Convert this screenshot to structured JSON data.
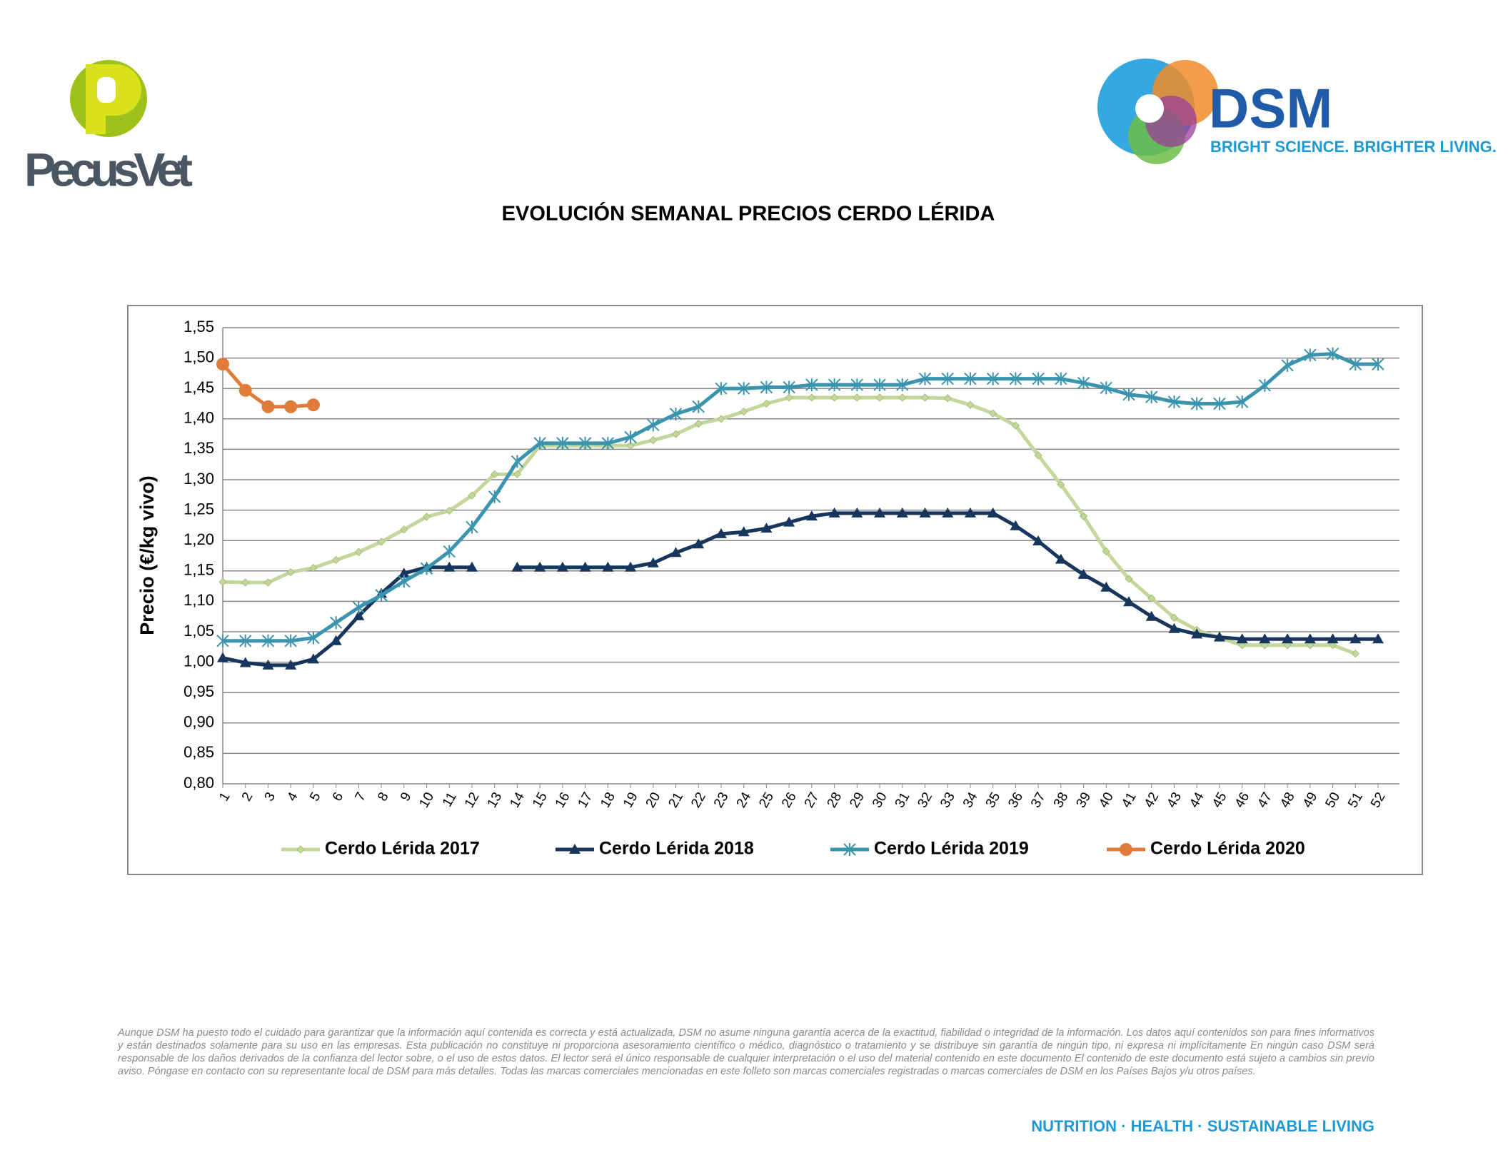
{
  "header": {
    "left_logo": "PecusVet",
    "right_logo": "DSM",
    "tagline": "BRIGHT SCIENCE. BRIGHTER LIVING."
  },
  "chart_data": {
    "type": "line",
    "title": "EVOLUCIÓN SEMANAL PRECIOS CERDO LÉRIDA",
    "y_label": "Precio (€/kg vivo)",
    "categories": [
      "1",
      "2",
      "3",
      "4",
      "5",
      "6",
      "7",
      "8",
      "9",
      "10",
      "11",
      "12",
      "13",
      "14",
      "15",
      "16",
      "17",
      "18",
      "19",
      "20",
      "21",
      "22",
      "23",
      "24",
      "25",
      "26",
      "27",
      "28",
      "29",
      "30",
      "31",
      "32",
      "33",
      "34",
      "35",
      "36",
      "37",
      "38",
      "39",
      "40",
      "41",
      "42",
      "43",
      "44",
      "45",
      "46",
      "47",
      "48",
      "49",
      "50",
      "51",
      "52"
    ],
    "ylim": [
      0.8,
      1.55
    ],
    "yticks": [
      {
        "value": 0.8,
        "label": "0,80"
      },
      {
        "value": 0.85,
        "label": "0,85"
      },
      {
        "value": 0.9,
        "label": "0,90"
      },
      {
        "value": 0.95,
        "label": "0,95"
      },
      {
        "value": 1.0,
        "label": "1,00"
      },
      {
        "value": 1.05,
        "label": "1,05"
      },
      {
        "value": 1.1,
        "label": "1,10"
      },
      {
        "value": 1.15,
        "label": "1,15"
      },
      {
        "value": 1.2,
        "label": "1,20"
      },
      {
        "value": 1.25,
        "label": "1,25"
      },
      {
        "value": 1.3,
        "label": "1,30"
      },
      {
        "value": 1.35,
        "label": "1,35"
      },
      {
        "value": 1.4,
        "label": "1,40"
      },
      {
        "value": 1.45,
        "label": "1,45"
      },
      {
        "value": 1.5,
        "label": "1,50"
      },
      {
        "value": 1.55,
        "label": "1,55"
      }
    ],
    "grid": true,
    "legend": "bottom",
    "series": [
      {
        "name": "Cerdo Lérida 2017",
        "color": "#c3d69b",
        "marker": "diamond",
        "values": [
          1.132,
          1.131,
          1.131,
          1.148,
          1.155,
          1.168,
          1.181,
          1.198,
          1.218,
          1.239,
          1.249,
          1.274,
          1.309,
          1.309,
          1.356,
          1.356,
          1.356,
          1.356,
          1.356,
          1.365,
          1.375,
          1.392,
          1.4,
          1.412,
          1.425,
          1.435,
          1.435,
          1.435,
          1.435,
          1.435,
          1.435,
          1.435,
          1.434,
          1.423,
          1.409,
          1.389,
          1.34,
          1.292,
          1.24,
          1.182,
          1.137,
          1.105,
          1.073,
          1.053,
          1.04,
          1.028,
          1.028,
          1.028,
          1.028,
          1.028,
          1.014,
          null
        ]
      },
      {
        "name": "Cerdo Lérida 2018",
        "color": "#17365d",
        "marker": "triangle",
        "values": [
          1.007,
          0.999,
          0.995,
          0.995,
          1.005,
          1.035,
          1.076,
          1.113,
          1.146,
          1.156,
          1.156,
          1.156,
          null,
          1.156,
          1.156,
          1.156,
          1.156,
          1.156,
          1.156,
          1.163,
          1.18,
          1.194,
          1.211,
          1.214,
          1.22,
          1.23,
          1.24,
          1.245,
          1.245,
          1.245,
          1.245,
          1.245,
          1.245,
          1.245,
          1.245,
          1.224,
          1.199,
          1.169,
          1.144,
          1.123,
          1.099,
          1.075,
          1.055,
          1.046,
          1.041,
          1.038,
          1.038,
          1.038,
          1.038,
          1.038,
          1.038,
          1.038
        ]
      },
      {
        "name": "Cerdo Lérida 2019",
        "color": "#3b94ae",
        "marker": "star",
        "values": [
          1.035,
          1.035,
          1.035,
          1.035,
          1.04,
          1.065,
          1.09,
          1.11,
          1.133,
          1.154,
          1.182,
          1.222,
          1.272,
          1.33,
          1.36,
          1.36,
          1.36,
          1.36,
          1.37,
          1.39,
          1.408,
          1.42,
          1.45,
          1.45,
          1.452,
          1.452,
          1.456,
          1.456,
          1.456,
          1.456,
          1.456,
          1.466,
          1.466,
          1.466,
          1.466,
          1.466,
          1.466,
          1.466,
          1.459,
          1.451,
          1.44,
          1.436,
          1.428,
          1.425,
          1.425,
          1.428,
          1.455,
          1.488,
          1.505,
          1.507,
          1.49,
          1.49
        ]
      },
      {
        "name": "Cerdo Lérida 2020",
        "color": "#e07b39",
        "marker": "circle",
        "values": [
          1.49,
          1.447,
          1.42,
          1.42,
          1.423,
          null,
          null,
          null,
          null,
          null,
          null,
          null,
          null,
          null,
          null,
          null,
          null,
          null,
          null,
          null,
          null,
          null,
          null,
          null,
          null,
          null,
          null,
          null,
          null,
          null,
          null,
          null,
          null,
          null,
          null,
          null,
          null,
          null,
          null,
          null,
          null,
          null,
          null,
          null,
          null,
          null,
          null,
          null,
          null,
          null,
          null,
          null
        ]
      }
    ]
  },
  "footer": {
    "disclaimer": "Aunque DSM ha puesto todo el cuidado para garantizar que la información aquí contenida es correcta y está actualizada, DSM no asume ninguna garantía acerca de la exactitud, fiabilidad o integridad de la información. Los datos aquí contenidos son para fines informativos y están destinados solamente para su uso en las empresas. Esta publicación no constituye ni proporciona asesoramiento científico o médico, diagnóstico o tratamiento y se distribuye sin garantía de ningún tipo, ni expresa ni implícitamente En ningún caso DSM será responsable de los daños derivados de la confianza del lector sobre, o el uso de estos datos. El lector será el único responsable de cualquier interpretación o el uso del material contenido en este documento El contenido de este documento está sujeto a cambios sin previo aviso. Póngase en contacto con su representante local de DSM para más detalles. Todas las marcas comerciales mencionadas en este folleto son marcas comerciales registradas o marcas comerciales de DSM en los Países Bajos y/u otros países.",
    "slogan": "NUTRITION · HEALTH · SUSTAINABLE LIVING"
  }
}
